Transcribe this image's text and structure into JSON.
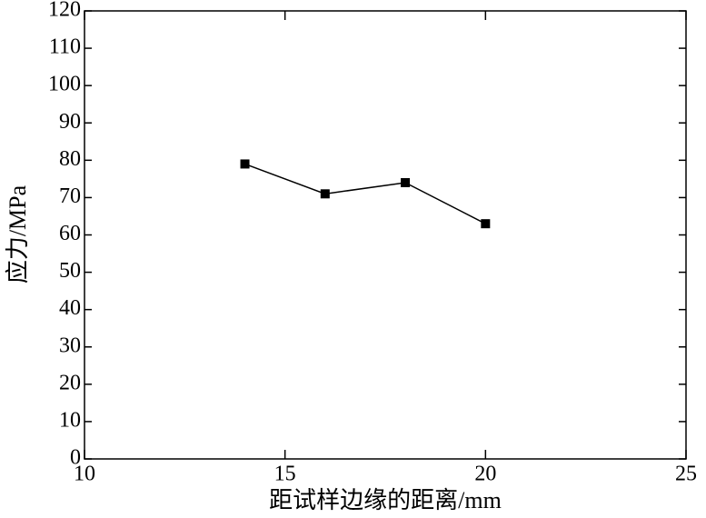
{
  "chart_data": {
    "type": "line",
    "xlabel": "距试样边缘的距离/mm",
    "ylabel": "应力/MPa",
    "x": [
      14,
      16,
      18,
      20
    ],
    "series": [
      {
        "color": "#000000",
        "values": [
          79,
          71,
          74,
          63
        ]
      }
    ],
    "xlim": [
      10,
      25
    ],
    "xticks": [
      10,
      15,
      20,
      25
    ],
    "ylim": [
      0,
      120
    ],
    "yticks": [
      0,
      10,
      20,
      30,
      40,
      50,
      60,
      70,
      80,
      90,
      100,
      110,
      120
    ],
    "grid": false
  }
}
